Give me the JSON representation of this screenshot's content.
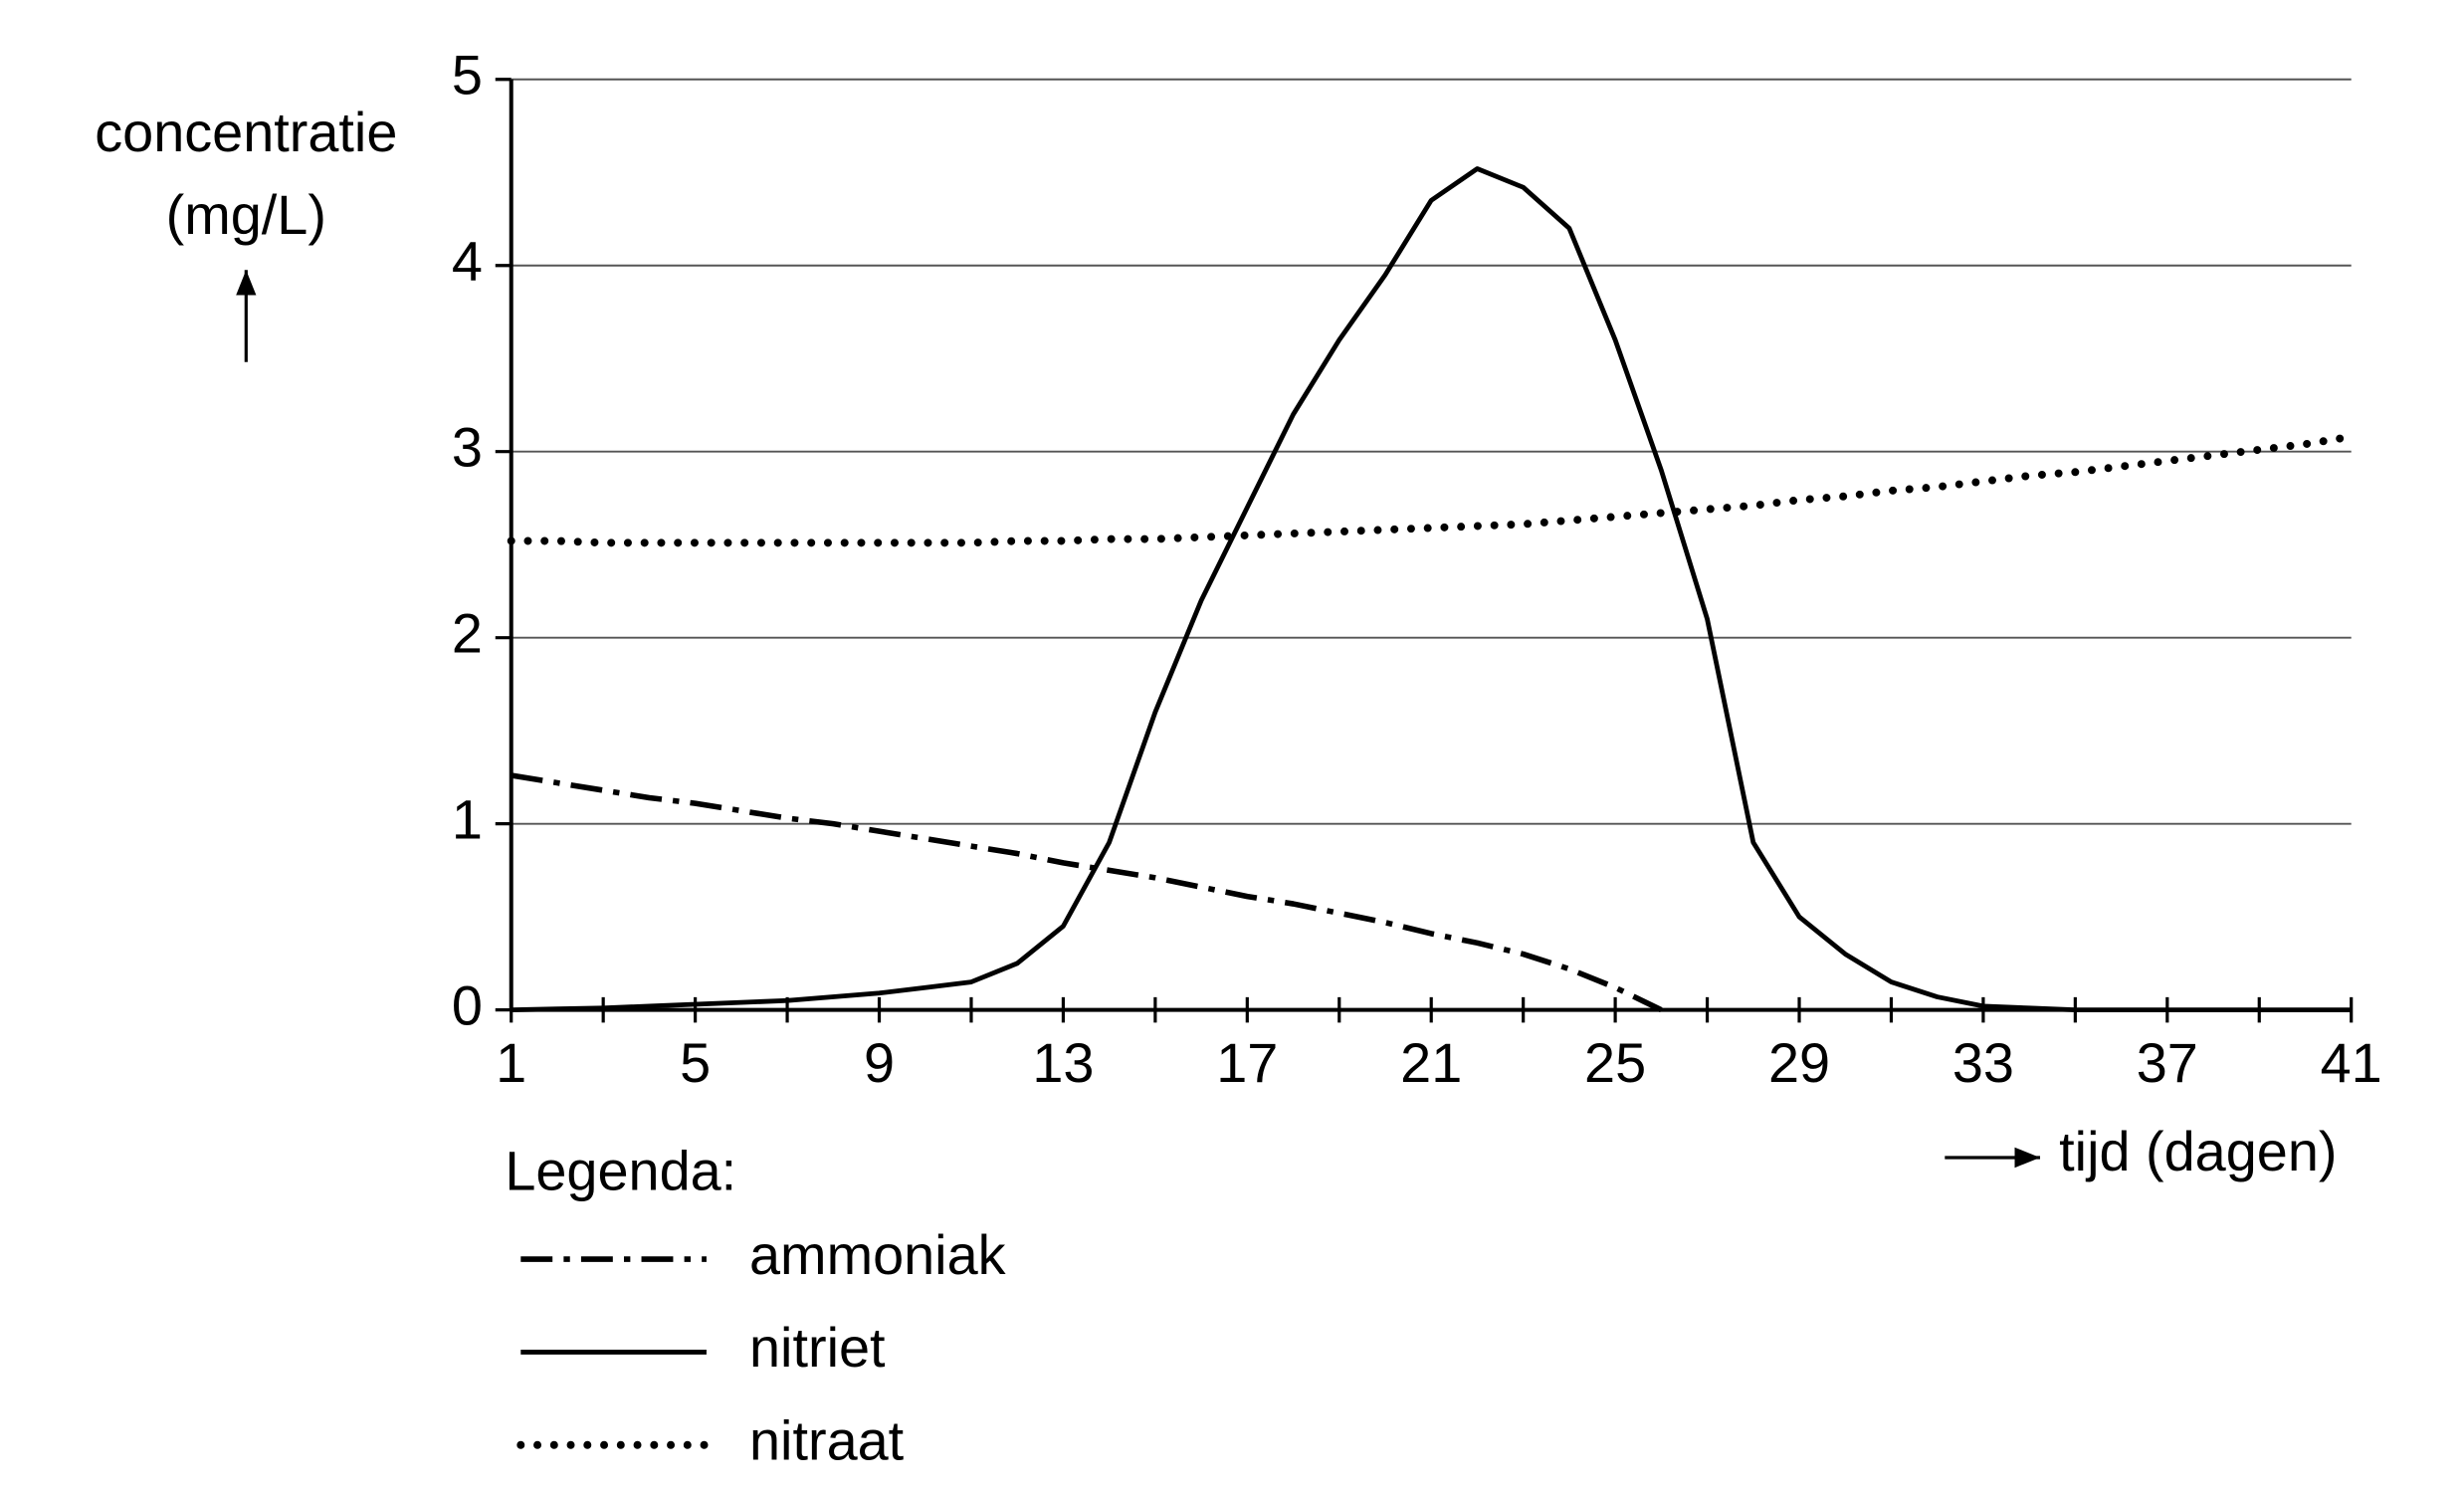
{
  "chart_data": {
    "type": "line",
    "ylabel": [
      "concentratie",
      "(mg/L)"
    ],
    "xlabel": "tijd (dagen)",
    "legend_title": "Legenda:",
    "legend": "bottom-left",
    "grid": true,
    "x": [
      1,
      2,
      3,
      4,
      5,
      6,
      7,
      8,
      9,
      10,
      11,
      12,
      13,
      14,
      15,
      16,
      17,
      18,
      19,
      20,
      21,
      22,
      23,
      24,
      25,
      26,
      27,
      28,
      29,
      30,
      31,
      32,
      33,
      34,
      35,
      36,
      37,
      38,
      39,
      40,
      41
    ],
    "series": [
      {
        "name": "ammoniak",
        "color": "#000000",
        "dash": "dashdot",
        "values": [
          1.26,
          1.22,
          1.18,
          1.14,
          1.11,
          1.07,
          1.03,
          1.0,
          0.96,
          0.92,
          0.88,
          0.84,
          0.79,
          0.75,
          0.71,
          0.66,
          0.61,
          0.57,
          0.52,
          0.47,
          0.41,
          0.36,
          0.3,
          0.22,
          0.12,
          0,
          null,
          null,
          null,
          null,
          null,
          null,
          null,
          null,
          null,
          null,
          null,
          null,
          null,
          null,
          null
        ]
      },
      {
        "name": "nitriet",
        "color": "#000000",
        "dash": "solid",
        "values": [
          0,
          0.005,
          0.01,
          0.02,
          0.03,
          0.04,
          0.05,
          0.07,
          0.09,
          0.12,
          0.15,
          0.25,
          0.45,
          0.9,
          1.6,
          2.2,
          2.7,
          3.2,
          3.6,
          3.95,
          4.35,
          4.52,
          4.42,
          4.2,
          3.6,
          2.9,
          2.1,
          0.9,
          0.5,
          0.3,
          0.15,
          0.07,
          0.02,
          0.01,
          0,
          0,
          0,
          0,
          0,
          0,
          0
        ]
      },
      {
        "name": "nitraat",
        "color": "#000000",
        "dash": "dotted",
        "values": [
          2.52,
          2.52,
          2.51,
          2.51,
          2.51,
          2.51,
          2.51,
          2.51,
          2.51,
          2.51,
          2.51,
          2.52,
          2.52,
          2.53,
          2.53,
          2.54,
          2.55,
          2.56,
          2.57,
          2.58,
          2.59,
          2.6,
          2.61,
          2.63,
          2.65,
          2.67,
          2.69,
          2.71,
          2.74,
          2.76,
          2.79,
          2.81,
          2.84,
          2.87,
          2.89,
          2.92,
          2.95,
          2.98,
          3.01,
          3.04,
          3.08
        ]
      }
    ],
    "xlim": [
      1,
      41
    ],
    "xticks": [
      1,
      5,
      9,
      13,
      17,
      21,
      25,
      29,
      33,
      37,
      41
    ],
    "xminorticks": [
      3,
      7,
      11,
      15,
      19,
      23,
      27,
      31,
      35,
      39
    ],
    "ylim": [
      0,
      5
    ],
    "yticks": [
      0,
      1,
      2,
      3,
      4,
      5
    ]
  }
}
